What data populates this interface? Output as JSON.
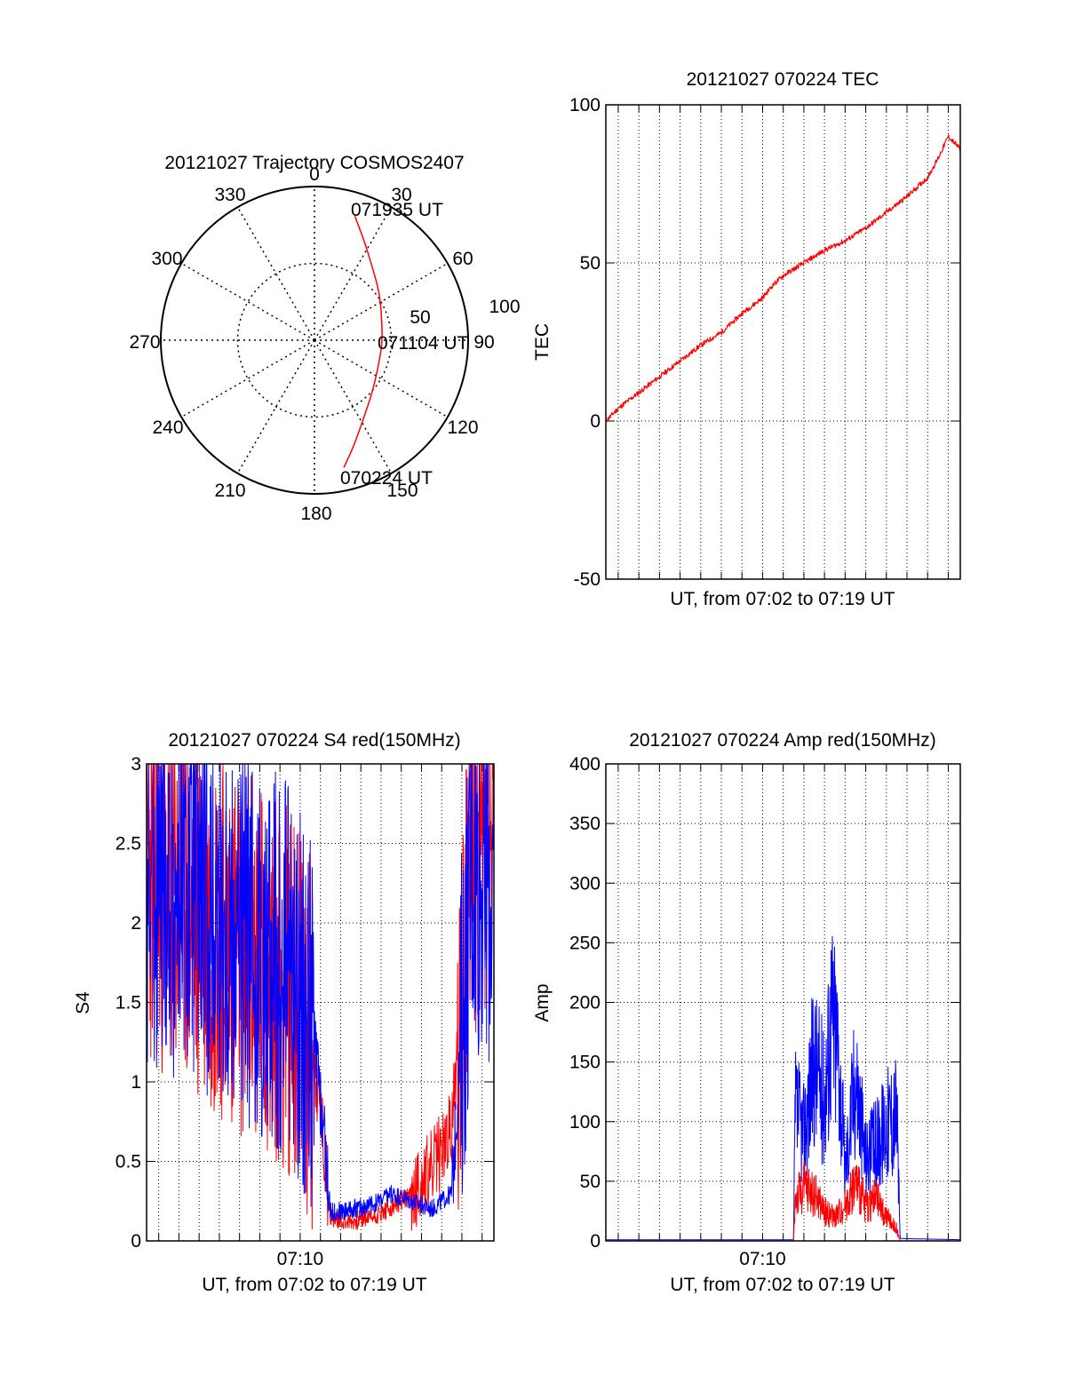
{
  "colors": {
    "series_a": "#ff0000",
    "series_b": "#0000ff",
    "axis": "#000000",
    "grid": "#000000",
    "background": "#ffffff"
  },
  "chart_data": [
    {
      "type": "polar",
      "title": "20121027 Trajectory COSMOS2407",
      "angle_labels": [
        "0",
        "30",
        "60",
        "90",
        "120",
        "150",
        "180",
        "210",
        "240",
        "270",
        "300",
        "330"
      ],
      "radial_labels": [
        "50",
        "100"
      ],
      "rlim": [
        0,
        100
      ],
      "time_labels": {
        "start": "070224 UT",
        "middle": "071104 UT",
        "end": "071935 UT"
      },
      "trajectory": {
        "name": "",
        "points": [
          {
            "az": 167,
            "zenith_dist": 85,
            "time": "070224 UT"
          },
          {
            "az": 160,
            "zenith_dist": 74
          },
          {
            "az": 150,
            "zenith_dist": 62
          },
          {
            "az": 130,
            "zenith_dist": 50
          },
          {
            "az": 104,
            "zenith_dist": 44
          },
          {
            "az": 93,
            "zenith_dist": 44,
            "time": "071104 UT"
          },
          {
            "az": 78,
            "zenith_dist": 45
          },
          {
            "az": 55,
            "zenith_dist": 52
          },
          {
            "az": 38,
            "zenith_dist": 61
          },
          {
            "az": 26,
            "zenith_dist": 73
          },
          {
            "az": 18,
            "zenith_dist": 85,
            "time": "071935 UT"
          }
        ]
      }
    },
    {
      "type": "line",
      "title": "20121027 070224 TEC",
      "xlabel": "UT, from 07:02 to 07:19 UT",
      "ylabel": "TEC",
      "ylim": [
        -50,
        100
      ],
      "yticks": [
        "-50",
        "0",
        "50",
        "100"
      ],
      "xlim": [
        "07:02:24",
        "07:19:35"
      ],
      "grid": true,
      "series": [
        {
          "name": "",
          "color": "#ff0000",
          "x": [
            "07:02:24",
            "07:03:00",
            "07:04:00",
            "07:05:00",
            "07:06:00",
            "07:07:00",
            "07:08:00",
            "07:09:00",
            "07:10:00",
            "07:10:30",
            "07:11:00",
            "07:12:00",
            "07:13:00",
            "07:14:00",
            "07:15:00",
            "07:16:00",
            "07:17:00",
            "07:17:30",
            "07:18:00",
            "07:18:30",
            "07:19:00",
            "07:19:35"
          ],
          "values": [
            0,
            4,
            9,
            14,
            19,
            24,
            28,
            34,
            39,
            43,
            46,
            50,
            54,
            57,
            61,
            66,
            71,
            74,
            77,
            83,
            90,
            86
          ]
        }
      ]
    },
    {
      "type": "line",
      "title": "20121027 070224 S4 red(150MHz)",
      "xlabel": "UT, from 07:02 to 07:19 UT",
      "ylabel": "S4",
      "ylim": [
        0,
        3
      ],
      "yticks": [
        "0",
        "0.5",
        "1",
        "1.5",
        "2",
        "2.5",
        "3"
      ],
      "xticks": [
        "07:10"
      ],
      "xlim": [
        "07:02:24",
        "07:19:35"
      ],
      "grid": true,
      "series": [
        {
          "name": "",
          "color": "#ff0000",
          "x": [
            "07:02:30",
            "07:03:30",
            "07:04:30",
            "07:05:30",
            "07:06:30",
            "07:07:30",
            "07:08:30",
            "07:09:30",
            "07:10:30",
            "07:11:00",
            "07:11:30",
            "07:12:30",
            "07:13:30",
            "07:14:30",
            "07:15:30",
            "07:16:30",
            "07:17:30",
            "07:18:30",
            "07:19:30"
          ],
          "values": [
            2.3,
            2.2,
            2.1,
            2.0,
            1.9,
            1.8,
            1.7,
            1.6,
            1.3,
            0.8,
            0.15,
            0.12,
            0.15,
            0.2,
            0.3,
            0.45,
            0.7,
            2.5,
            2.4
          ]
        },
        {
          "name": "",
          "color": "#0000ff",
          "x": [
            "07:02:30",
            "07:03:30",
            "07:04:30",
            "07:05:30",
            "07:06:30",
            "07:07:30",
            "07:08:30",
            "07:09:30",
            "07:10:30",
            "07:11:00",
            "07:11:30",
            "07:12:30",
            "07:13:30",
            "07:14:30",
            "07:15:30",
            "07:16:30",
            "07:17:30",
            "07:18:30",
            "07:19:30"
          ],
          "values": [
            2.3,
            2.25,
            2.15,
            2.05,
            1.95,
            1.85,
            1.8,
            1.7,
            1.4,
            0.9,
            0.18,
            0.2,
            0.22,
            0.3,
            0.25,
            0.2,
            0.3,
            2.4,
            2.2
          ]
        }
      ]
    },
    {
      "type": "line",
      "title": "20121027 070224 Amp red(150MHz)",
      "xlabel": "UT, from 07:02 to 07:19 UT",
      "ylabel": "Amp",
      "ylim": [
        0,
        400
      ],
      "yticks": [
        "0",
        "50",
        "100",
        "150",
        "200",
        "250",
        "300",
        "350",
        "400"
      ],
      "xticks": [
        "07:10"
      ],
      "xlim": [
        "07:02:24",
        "07:19:35"
      ],
      "grid": true,
      "series": [
        {
          "name": "",
          "color": "#0000ff",
          "x": [
            "07:02:24",
            "07:11:30",
            "07:11:35",
            "07:12:00",
            "07:12:30",
            "07:13:00",
            "07:13:20",
            "07:13:40",
            "07:14:00",
            "07:14:30",
            "07:15:00",
            "07:15:30",
            "07:16:00",
            "07:16:30",
            "07:16:40",
            "07:19:35"
          ],
          "values": [
            1,
            1,
            110,
            90,
            150,
            120,
            190,
            160,
            60,
            140,
            70,
            80,
            100,
            110,
            2,
            1
          ]
        },
        {
          "name": "",
          "color": "#ff0000",
          "x": [
            "07:02:24",
            "07:11:30",
            "07:11:35",
            "07:12:00",
            "07:12:30",
            "07:13:00",
            "07:13:30",
            "07:14:00",
            "07:14:30",
            "07:15:00",
            "07:15:30",
            "07:16:00",
            "07:16:30",
            "07:16:40",
            "07:19:35"
          ],
          "values": [
            0,
            0,
            35,
            45,
            40,
            25,
            20,
            30,
            50,
            30,
            35,
            20,
            10,
            0,
            0
          ]
        }
      ]
    }
  ]
}
